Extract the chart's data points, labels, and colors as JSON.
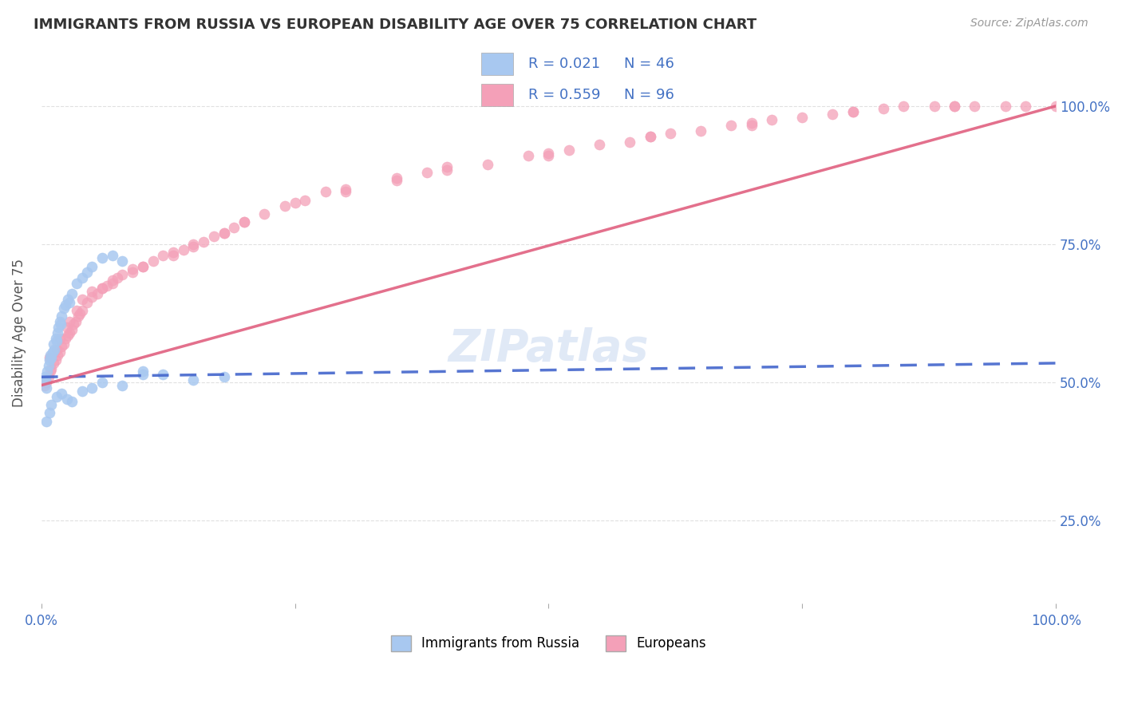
{
  "title": "IMMIGRANTS FROM RUSSIA VS EUROPEAN DISABILITY AGE OVER 75 CORRELATION CHART",
  "source": "Source: ZipAtlas.com",
  "ylabel": "Disability Age Over 75",
  "legend_labels": [
    "Immigrants from Russia",
    "Europeans"
  ],
  "legend_R_blue": "R = 0.021",
  "legend_N_blue": "N = 46",
  "legend_R_pink": "R = 0.559",
  "legend_N_pink": "N = 96",
  "blue_color": "#A8C8F0",
  "pink_color": "#F4A0B8",
  "blue_line_color": "#4466CC",
  "pink_line_color": "#E06080",
  "axis_label_color": "#4472C4",
  "watermark": "ZIPatlas",
  "blue_x": [
    0.3,
    0.4,
    0.5,
    0.6,
    0.7,
    0.8,
    0.9,
    1.0,
    1.1,
    1.2,
    1.3,
    1.4,
    1.5,
    1.6,
    1.7,
    1.8,
    1.9,
    2.0,
    2.2,
    2.4,
    2.6,
    2.8,
    3.0,
    3.5,
    4.0,
    4.5,
    5.0,
    6.0,
    7.0,
    8.0,
    10.0,
    12.0,
    15.0,
    18.0,
    1.0,
    1.5,
    2.0,
    2.5,
    3.0,
    4.0,
    5.0,
    6.0,
    8.0,
    10.0,
    0.5,
    0.8
  ],
  "blue_y": [
    51.0,
    50.5,
    49.0,
    52.0,
    53.0,
    54.0,
    55.0,
    54.5,
    55.5,
    57.0,
    56.0,
    58.0,
    57.5,
    59.0,
    60.0,
    61.0,
    60.5,
    62.0,
    63.5,
    64.0,
    65.0,
    64.5,
    66.0,
    68.0,
    69.0,
    70.0,
    71.0,
    72.5,
    73.0,
    72.0,
    52.0,
    51.5,
    50.5,
    51.0,
    46.0,
    47.5,
    48.0,
    47.0,
    46.5,
    48.5,
    49.0,
    50.0,
    49.5,
    51.5,
    43.0,
    44.5
  ],
  "pink_x": [
    0.3,
    0.5,
    0.7,
    0.9,
    1.0,
    1.2,
    1.4,
    1.6,
    1.8,
    2.0,
    2.2,
    2.4,
    2.6,
    2.8,
    3.0,
    3.2,
    3.4,
    3.6,
    3.8,
    4.0,
    4.5,
    5.0,
    5.5,
    6.0,
    6.5,
    7.0,
    7.5,
    8.0,
    9.0,
    10.0,
    11.0,
    12.0,
    13.0,
    14.0,
    15.0,
    16.0,
    17.0,
    18.0,
    19.0,
    20.0,
    22.0,
    24.0,
    26.0,
    28.0,
    30.0,
    35.0,
    38.0,
    40.0,
    44.0,
    48.0,
    50.0,
    52.0,
    55.0,
    58.0,
    60.0,
    62.0,
    65.0,
    68.0,
    70.0,
    72.0,
    75.0,
    78.0,
    80.0,
    83.0,
    85.0,
    88.0,
    90.0,
    92.0,
    95.0,
    97.0,
    100.0,
    1.5,
    2.5,
    3.5,
    5.0,
    7.0,
    10.0,
    15.0,
    20.0,
    30.0,
    40.0,
    50.0,
    60.0,
    70.0,
    80.0,
    90.0,
    0.8,
    1.8,
    2.8,
    4.0,
    6.0,
    9.0,
    13.0,
    18.0,
    25.0,
    35.0
  ],
  "pink_y": [
    49.5,
    50.0,
    51.0,
    52.0,
    52.5,
    53.5,
    54.0,
    55.0,
    55.5,
    56.5,
    57.0,
    58.0,
    58.5,
    59.0,
    59.5,
    60.5,
    61.0,
    62.0,
    62.5,
    63.0,
    64.5,
    65.5,
    66.0,
    67.0,
    67.5,
    68.0,
    69.0,
    69.5,
    70.5,
    71.0,
    72.0,
    73.0,
    73.5,
    74.0,
    75.0,
    75.5,
    76.5,
    77.0,
    78.0,
    79.0,
    80.5,
    82.0,
    83.0,
    84.5,
    85.0,
    86.5,
    88.0,
    88.5,
    89.5,
    91.0,
    91.5,
    92.0,
    93.0,
    93.5,
    94.5,
    95.0,
    95.5,
    96.5,
    97.0,
    97.5,
    98.0,
    98.5,
    99.0,
    99.5,
    100.0,
    100.0,
    100.0,
    100.0,
    100.0,
    100.0,
    100.0,
    56.0,
    60.0,
    63.0,
    66.5,
    68.5,
    71.0,
    74.5,
    79.0,
    84.5,
    89.0,
    91.0,
    94.5,
    96.5,
    99.0,
    100.0,
    54.5,
    58.0,
    61.0,
    65.0,
    67.0,
    70.0,
    73.0,
    77.0,
    82.5,
    87.0
  ],
  "xlim": [
    0,
    100
  ],
  "ylim": [
    10,
    108
  ],
  "yticks": [
    25,
    50,
    75,
    100
  ],
  "ytick_labels": [
    "25.0%",
    "50.0%",
    "75.0%",
    "100.0%"
  ],
  "xticks": [
    0,
    25,
    50,
    75,
    100
  ],
  "xtick_labels": [
    "0.0%",
    "",
    "",
    "",
    "100.0%"
  ],
  "blue_trend_x0": 0,
  "blue_trend_y0": 51.0,
  "blue_trend_x1": 100,
  "blue_trend_y1": 53.5,
  "pink_trend_x0": 0,
  "pink_trend_y0": 49.5,
  "pink_trend_x1": 100,
  "pink_trend_y1": 100.0
}
